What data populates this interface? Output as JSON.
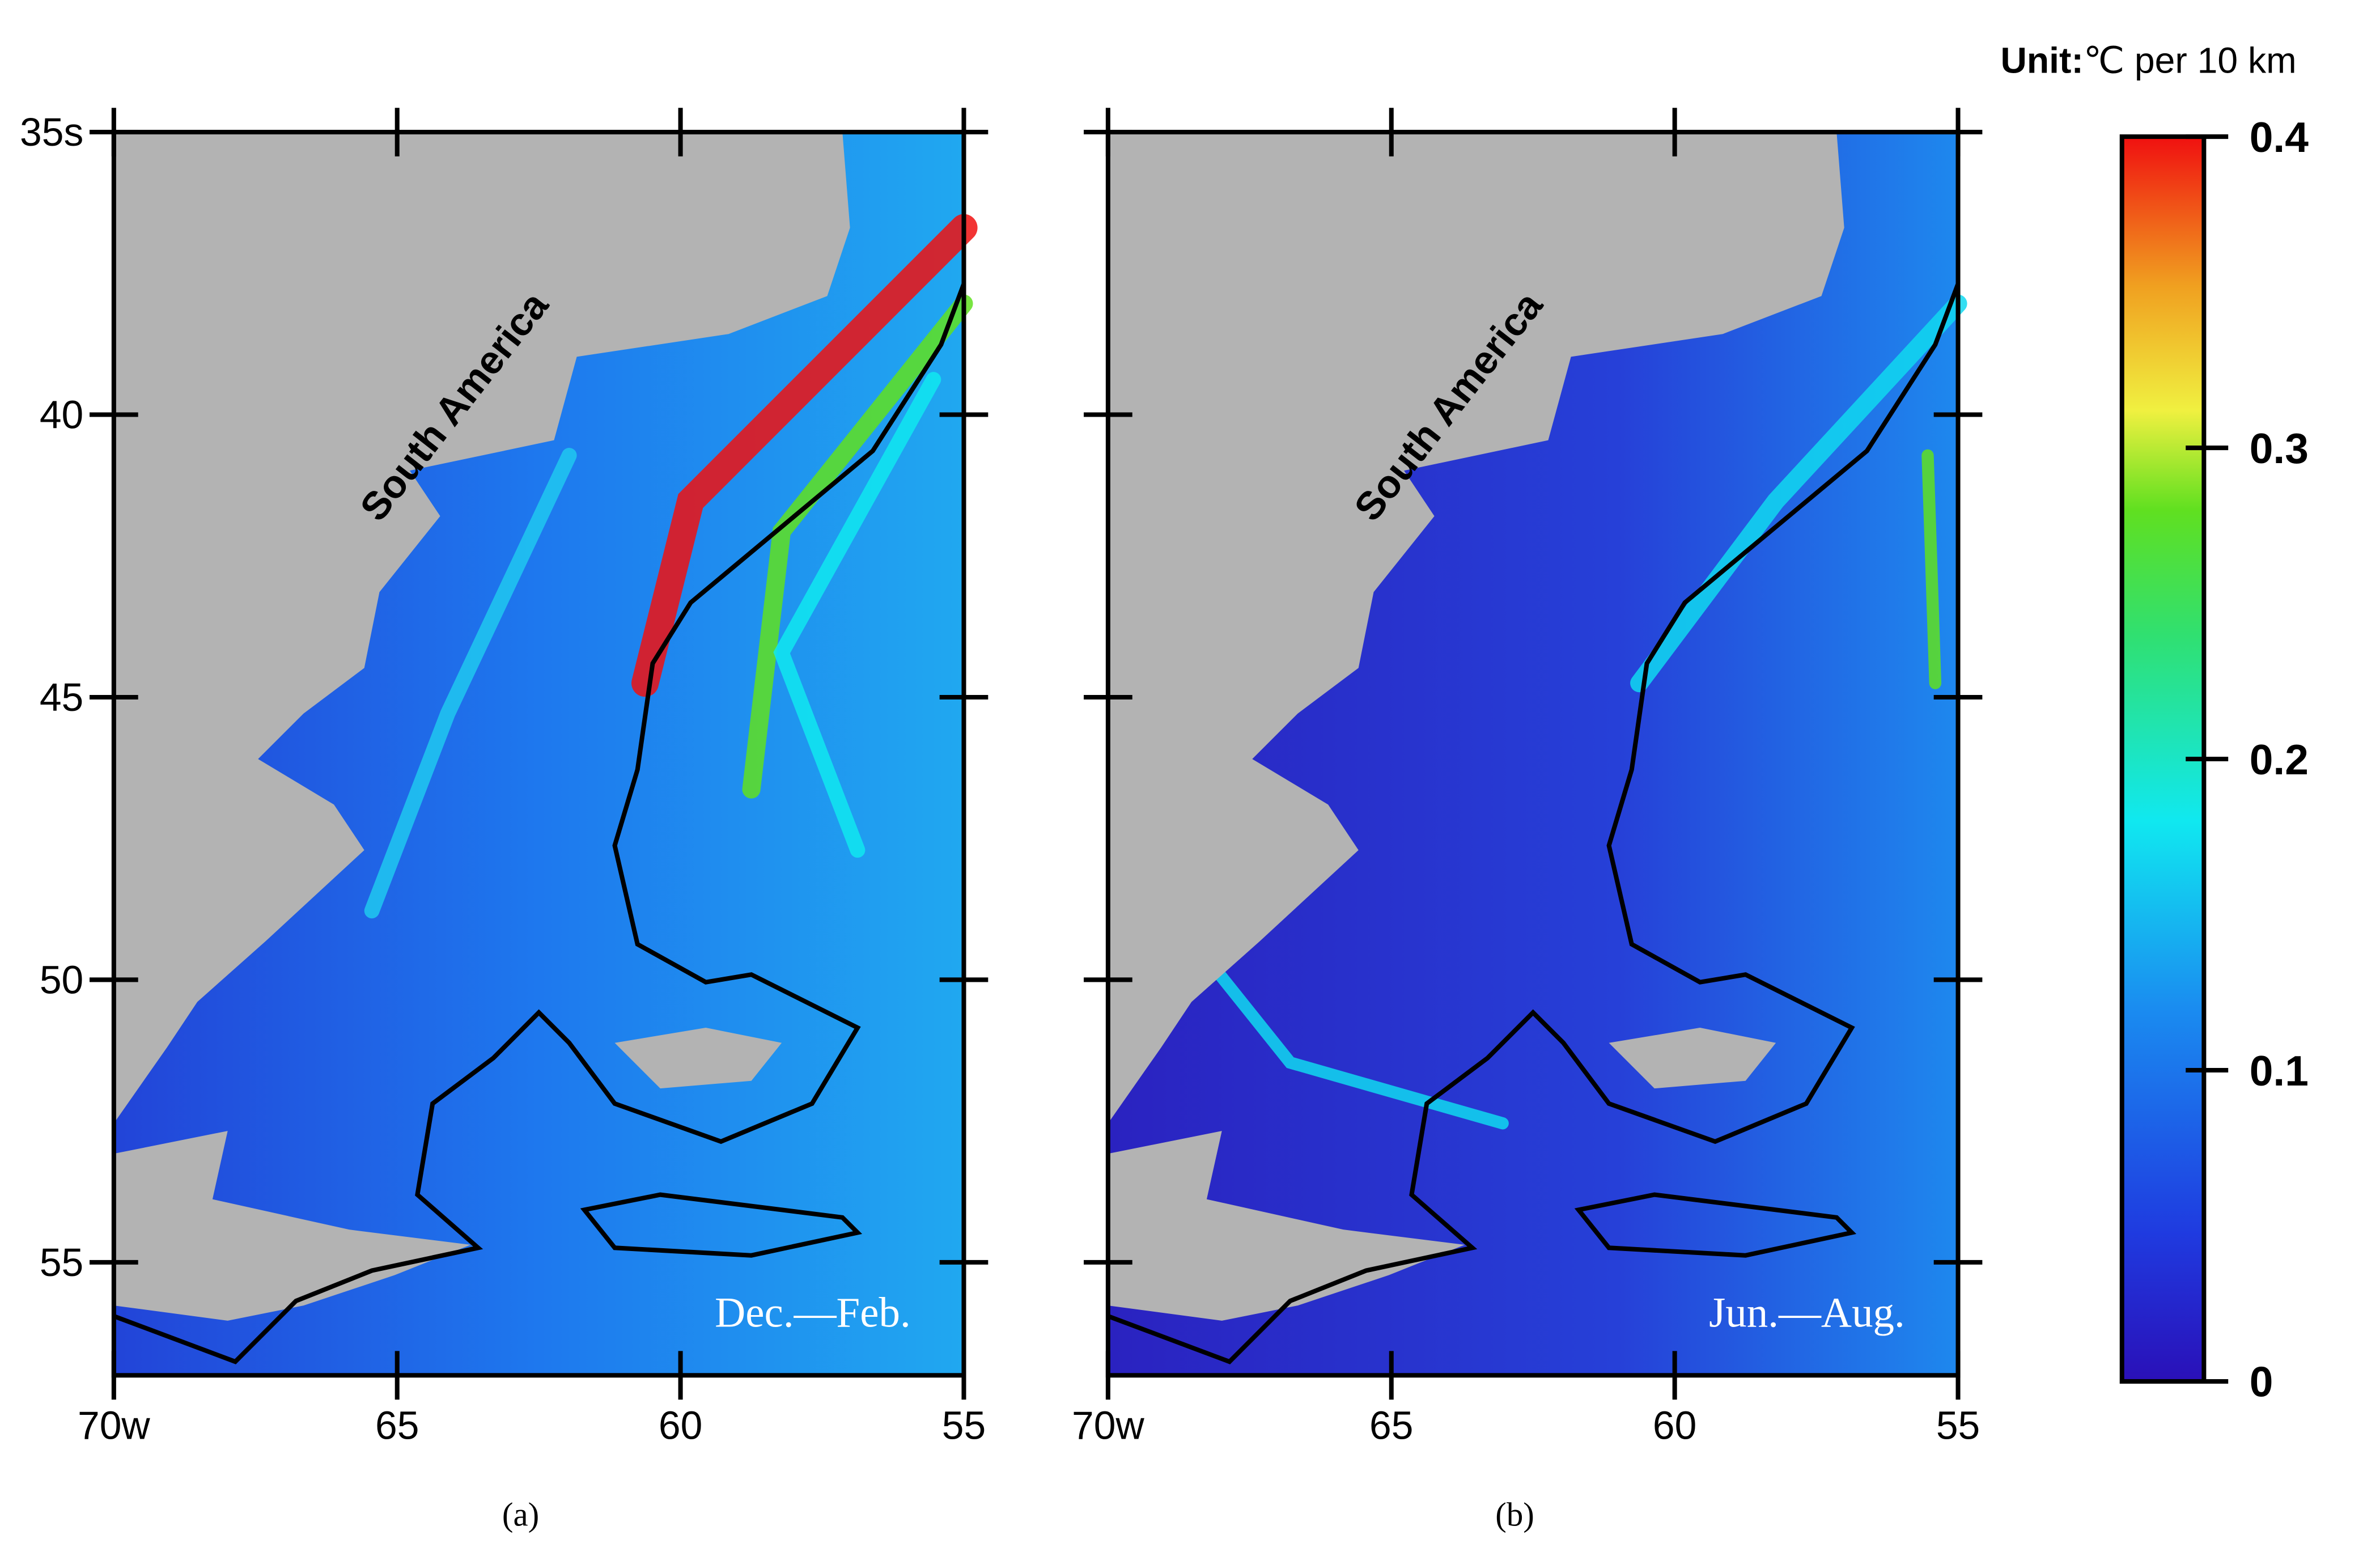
{
  "unit_label": {
    "bold": "Unit:",
    "text": "℃ per 10 km"
  },
  "xlim": [
    70,
    55
  ],
  "ylim": [
    35,
    57
  ],
  "xticks": [
    {
      "value": 70,
      "label": "70w"
    },
    65,
    60,
    55
  ],
  "yticks": [
    {
      "value": 35,
      "label": "35s"
    },
    40,
    45,
    50,
    55
  ],
  "colorbar": {
    "lim": [
      0,
      0.4
    ],
    "ticks": [
      0,
      0.1,
      0.2,
      0.3,
      0.4
    ]
  },
  "panels": [
    {
      "label": "(a)",
      "season": "Dec.—Feb.",
      "region_label": "South America"
    },
    {
      "label": "(b)",
      "season": "Jun.—Aug.",
      "region_label": "South America"
    }
  ]
}
